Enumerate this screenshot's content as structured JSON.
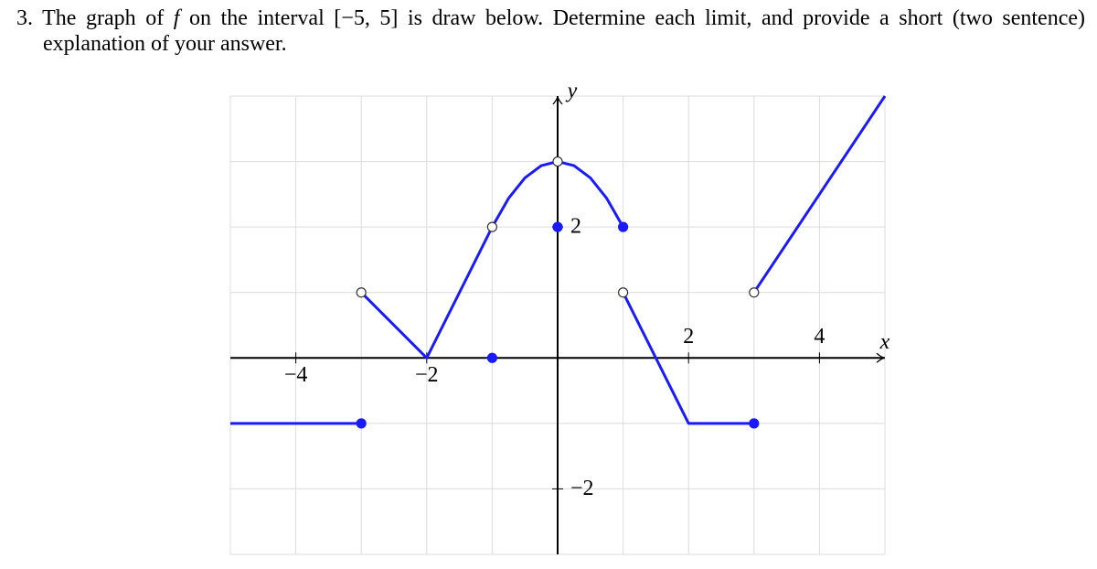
{
  "problem": {
    "parts": [
      "3. The graph of ",
      "f",
      " on the interval [−5, 5] is draw below. Determine each limit, and provide a short (two sentence) explanation of your answer."
    ]
  },
  "chart_data": {
    "type": "line",
    "x_label": "x",
    "y_label": "y",
    "xlim": [
      -5,
      5
    ],
    "ylim": [
      -3,
      4
    ],
    "xticks": [
      {
        "value": -4,
        "label": "−4"
      },
      {
        "value": -2,
        "label": "−2"
      },
      2,
      4
    ],
    "yticks": [
      {
        "value": -2,
        "label": "−2"
      },
      2
    ],
    "grid": true,
    "series": [
      {
        "color": "#1a1aff",
        "x": [
          -5,
          -3,
          null,
          -3,
          -2,
          -1,
          -0.75,
          -0.5,
          -0.25,
          0,
          0.25,
          0.5,
          0.75,
          1,
          null,
          1,
          2,
          3,
          null,
          3,
          5
        ],
        "values": [
          -1,
          -1,
          null,
          1,
          0,
          2,
          2.4375,
          2.75,
          2.9375,
          3,
          2.9375,
          2.75,
          2.4375,
          2,
          null,
          1,
          -1,
          -1,
          null,
          1,
          4
        ]
      }
    ],
    "points": [
      {
        "x": -3,
        "y": -1,
        "filled": true
      },
      {
        "x": -3,
        "y": 1,
        "filled": false
      },
      {
        "x": -1,
        "y": 2,
        "filled": false
      },
      {
        "x": -1,
        "y": 0,
        "filled": true
      },
      {
        "x": 0,
        "y": 3,
        "filled": false
      },
      {
        "x": 0,
        "y": 2,
        "filled": true
      },
      {
        "x": 1,
        "y": 2,
        "filled": true
      },
      {
        "x": 1,
        "y": 1,
        "filled": false
      },
      {
        "x": 3,
        "y": -1,
        "filled": true
      },
      {
        "x": 3,
        "y": 1,
        "filled": false
      }
    ]
  }
}
